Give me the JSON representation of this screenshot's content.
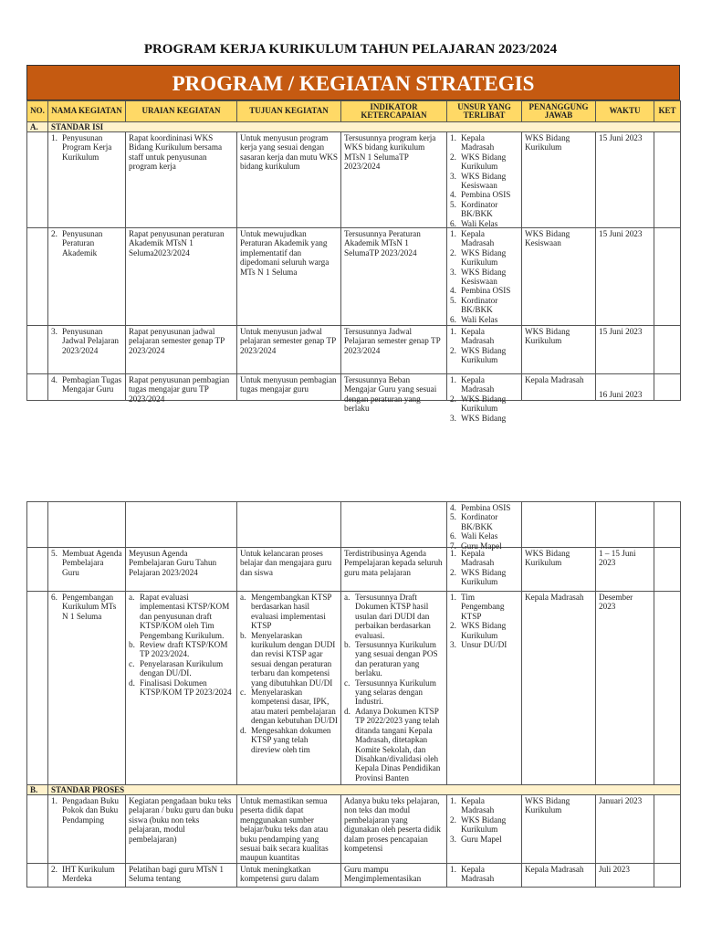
{
  "document_title": "PROGRAM KERJA KURIKULUM TAHUN PELAJARAN 2023/2024",
  "banner_title": "PROGRAM / KEGIATAN STRATEGIS",
  "colors": {
    "banner": "#C55A11",
    "header_fill": "#FFD966",
    "section_fill": "#FFF2CC"
  },
  "headers": [
    "NO.",
    "NAMA KEGIATAN",
    "URAIAN KEGIATAN",
    "TUJUAN KEGIATAN",
    "INDIKATOR KETERCAPAIAN",
    "UNSUR YANG TERLIBAT",
    "PENANGGUNG JAWAB",
    "WAKTU",
    "KET"
  ],
  "pages": [
    {
      "rows": [
        {
          "type": "section",
          "no": "A.",
          "label": "STANDAR ISI"
        },
        {
          "type": "item",
          "nama": {
            "list": "num",
            "start": 1,
            "items": [
              "Penyusunan Program Kerja Kurikulum"
            ]
          },
          "uraian": "Rapat koordininasi WKS Bidang Kurikulum bersama staff untuk penyusunan program kerja",
          "tujuan": "Untuk menyusun program kerja yang sesuai dengan sasaran kerja dan mutu WKS bidang kurikulum",
          "indikator": "Tersusunnya program kerja WKS bidang kurikulum MTsN 1 SelumaTP 2023/2024",
          "unsur": {
            "list": "num",
            "start": 1,
            "items": [
              "Kepala Madrasah",
              "WKS Bidang Kurikulum",
              "WKS Bidang Kesiswaan",
              "Pembina OSIS",
              "Kordinator BK/BKK",
              "Wali Kelas"
            ]
          },
          "penanggung": "WKS Bidang Kurikulum",
          "waktu": "15 Juni 2023",
          "ket": ""
        },
        {
          "type": "item",
          "nama": {
            "list": "num",
            "start": 2,
            "items": [
              "Penyusunan Peraturan Akademik"
            ]
          },
          "uraian": "Rapat penyusunan peraturan Akademik MTsN 1 Seluma2023/2024",
          "tujuan": "Untuk mewujudkan Peraturan Akademik yang implementatif dan dipedomani seluruh warga MTs N 1 Seluma",
          "indikator": "Tersusunnya Peraturan Akademik MTsN 1 SelumaTP 2023/2024",
          "unsur": {
            "list": "num",
            "start": 1,
            "items": [
              "Kepala Madrasah",
              "WKS Bidang Kurikulum",
              "WKS Bidang Kesiswaan",
              "Pembina OSIS",
              "Kordinator BK/BKK",
              "Wali Kelas"
            ]
          },
          "penanggung": "WKS Bidang Kesiswaan",
          "waktu": "15 Juni 2023",
          "ket": ""
        },
        {
          "type": "item",
          "nama": {
            "list": "num",
            "start": 3,
            "items": [
              "Penyusunan Jadwal Pelajaran 2023/2024"
            ]
          },
          "uraian": "Rapat penyusunan jadwal pelajaran semester genap TP 2023/2024",
          "tujuan": "Untuk menyusun jadwal pelajaran semester genap TP 2023/2024",
          "indikator": "Tersusunnya Jadwal Pelajaran semester genap TP 2023/2024",
          "unsur": {
            "list": "num",
            "start": 1,
            "items": [
              "Kepala Madrasah",
              "WKS Bidang Kurikulum"
            ]
          },
          "penanggung": "WKS Bidang Kurikulum",
          "waktu": "15 Juni 2023",
          "ket": ""
        },
        {
          "type": "item",
          "nama": {
            "list": "num",
            "start": 4,
            "items": [
              "Pembagian Tugas Mengajar Guru"
            ]
          },
          "uraian": "Rapat penyusunan pembagian tugas mengajar guru TP 2023/2024",
          "tujuan": "Untuk menyusun pembagian tugas mengajar guru",
          "indikator": "Tersusunnya Beban Mengajar Guru yang sesuai dengan peraturan yang berlaku",
          "unsur": {
            "list": "num",
            "start": 1,
            "items": [
              "Kepala Madrasah",
              "WKS Bidang Kurikulum",
              "WKS Bidang"
            ]
          },
          "penanggung": "Kepala Madrasah",
          "waktu": "16 Juni 2023",
          "ket": ""
        }
      ]
    },
    {
      "rows": [
        {
          "type": "item",
          "nama": "",
          "uraian": "",
          "tujuan": "",
          "indikator": "",
          "unsur": {
            "list": "num",
            "start": 4,
            "items": [
              "Pembina OSIS",
              "Kordinator BK/BKK",
              "Wali Kelas",
              "Guru Mapel"
            ]
          },
          "penanggung": "",
          "waktu": "",
          "ket": ""
        },
        {
          "type": "item",
          "nama": {
            "list": "num",
            "start": 5,
            "items": [
              "Membuat Agenda Pembelajara Guru"
            ]
          },
          "uraian": "Meyusun Agenda Pembelajaran Guru Tahun Pelajaran 2023/2024",
          "tujuan": "Untuk kelancaran proses belajar dan mengajara guru dan siswa",
          "indikator": "Terdistribusinya Agenda Pempelajaran kepada seluruh guru mata pelajaran",
          "unsur": {
            "list": "num",
            "start": 1,
            "items": [
              "Kepala Madrasah",
              "WKS Bidang Kurikulum"
            ]
          },
          "penanggung": "WKS Bidang Kurikulum",
          "waktu": "1 – 15 Juni 2023",
          "ket": ""
        },
        {
          "type": "item",
          "nama": {
            "list": "num",
            "start": 6,
            "items": [
              "Pengembangan Kurikulum MTs N 1 Seluma"
            ]
          },
          "uraian": {
            "list": "alpha",
            "items": [
              "Rapat evaluasi implementasi KTSP/KOM dan penyusunan draft KTSP/KOM oleh Tim Pengembang Kurikulum.",
              "Review draft KTSP/KOM TP 2023/2024.",
              "Penyelarasan Kurikulum dengan DU/DI.",
              "Finalisasi Dokumen KTSP/KOM TP 2023/2024"
            ]
          },
          "tujuan": {
            "list": "alpha",
            "items": [
              "Mengembangkan KTSP berdasarkan hasil evaluasi implementasi KTSP",
              "Menyelaraskan kurikulum dengan DUDI dan revisi KTSP agar sesuai dengan peraturan terbaru dan kompetensi yang dibutuhkan DU/DI",
              "Menyelaraskan kompetensi dasar, IPK, atau materi pembelajaran dengan kebutuhan DU/DI",
              "Mengesahkan dokumen KTSP yang telah direview oleh tim"
            ]
          },
          "indikator": {
            "list": "alpha",
            "items": [
              "Tersusunnya Draft Dokumen KTSP hasil usulan dari DUDI dan perbaikan berdasarkan evaluasi.",
              "Tersusunnya Kurikulum yang sesuai dengan POS dan peraturan yang berlaku.",
              "Tersusunnya Kurikulum yang selaras dengan Industri.",
              "Adanya Dokumen KTSP TP 2022/2023 yang telah ditanda tangani Kepala Madrasah, ditetapkan Komite Sekolah, dan Disahkan/divalidasi oleh Kepala Dinas Pendidikan Provinsi Banten"
            ]
          },
          "unsur": {
            "list": "num",
            "start": 1,
            "items": [
              "Tim Pengembang KTSP",
              "WKS Bidang Kurikulum",
              "Unsur DU/DI"
            ]
          },
          "penanggung": "Kepala Madrasah",
          "waktu": "Desember 2023",
          "ket": ""
        },
        {
          "type": "section",
          "no": "B.",
          "label": "STANDAR PROSES"
        },
        {
          "type": "item",
          "nama": {
            "list": "num",
            "start": 1,
            "items": [
              "Pengadaan Buku Pokok dan Buku Pendamping"
            ]
          },
          "uraian": "Kegiatan pengadaan buku teks pelajaran / buku guru dan buku siswa (buku non teks pelajaran,  modul pembelajaran)",
          "tujuan": "Untuk memastikan semua peserta didik dapat menggunakan sumber belajar/buku teks dan atau buku pendamping yang sesuai baik secara kualitas maupun kuantitas",
          "indikator": "Adanya buku teks pelajaran, non teks dan modul pembelajaran yang digunakan oleh peserta didik dalam proses pencapaian kompetensi",
          "unsur": {
            "list": "num",
            "start": 1,
            "items": [
              "Kepala Madrasah",
              "WKS Bidang Kurikulum",
              "Guru Mapel"
            ]
          },
          "penanggung": "WKS Bidang Kurikulum",
          "waktu": "Januari 2023",
          "ket": ""
        },
        {
          "type": "item",
          "nama": {
            "list": "num",
            "start": 2,
            "items": [
              "IHT Kurikulum Merdeka"
            ]
          },
          "uraian": "Pelatihan bagi guru MTsN 1 Seluma tentang",
          "tujuan": "Untuk meningkatkan kompetensi guru dalam",
          "indikator": "Guru mampu Mengimplementasikan",
          "unsur": {
            "list": "num",
            "start": 1,
            "items": [
              "Kepala Madrasah"
            ]
          },
          "penanggung": "Kepala Madrasah",
          "waktu": "Juli 2023",
          "ket": ""
        }
      ]
    }
  ]
}
